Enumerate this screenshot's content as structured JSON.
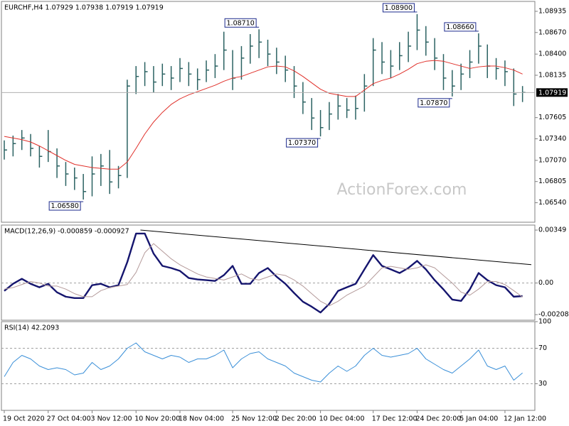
{
  "chart_data": [
    {
      "type": "ohlc",
      "title": "EURCHF,H4  1.07929 1.07938 1.07919 1.07919",
      "watermark": "ActionForex.com",
      "categories": [
        "19 Oct 2020",
        null,
        null,
        null,
        null,
        "27 Oct 04:00",
        null,
        null,
        null,
        null,
        "3 Nov 12:00",
        null,
        null,
        null,
        null,
        "10 Nov 20:00",
        null,
        null,
        null,
        null,
        "18 Nov 04:00",
        null,
        null,
        null,
        null,
        null,
        "25 Nov 12:00",
        null,
        null,
        null,
        null,
        "2 Dec 20:00",
        null,
        null,
        null,
        null,
        "10 Dec 04:00",
        null,
        null,
        null,
        null,
        null,
        "17 Dec 12:00",
        null,
        null,
        null,
        null,
        "24 Dec 20:00",
        null,
        null,
        null,
        null,
        "5 Jan 04:00",
        null,
        null,
        null,
        null,
        "12 Jan 12:00",
        null,
        null
      ],
      "high": [
        1.0732,
        1.0738,
        1.0745,
        1.074,
        1.0725,
        1.0745,
        1.0722,
        1.0705,
        1.0698,
        1.069,
        1.0712,
        1.0715,
        1.072,
        1.07,
        1.0808,
        1.0825,
        1.083,
        1.0825,
        1.0828,
        1.0825,
        1.0835,
        1.083,
        1.0822,
        1.0832,
        1.084,
        1.0868,
        1.0845,
        1.085,
        1.0865,
        1.0871,
        1.0858,
        1.0848,
        1.0838,
        1.0825,
        1.0805,
        1.0785,
        1.077,
        1.078,
        1.079,
        1.0785,
        1.0788,
        1.0815,
        1.086,
        1.0855,
        1.0845,
        1.0855,
        1.0868,
        1.089,
        1.0875,
        1.086,
        1.084,
        1.082,
        1.0828,
        1.0845,
        1.0866,
        1.0852,
        1.0835,
        1.0832,
        1.0822,
        1.08
      ],
      "low": [
        1.0708,
        1.0712,
        1.072,
        1.0712,
        1.0698,
        1.0705,
        1.0685,
        1.0675,
        1.067,
        1.0658,
        1.0662,
        1.0675,
        1.0665,
        1.0672,
        1.0685,
        1.079,
        1.08,
        1.0792,
        1.08,
        1.0795,
        1.0805,
        1.08,
        1.0795,
        1.0805,
        1.081,
        1.082,
        1.0795,
        1.0808,
        1.0828,
        1.0835,
        1.0825,
        1.0815,
        1.0805,
        1.0785,
        1.0765,
        1.0745,
        1.0737,
        1.0745,
        1.0758,
        1.076,
        1.0758,
        1.0768,
        1.08,
        1.0815,
        1.081,
        1.082,
        1.083,
        1.0845,
        1.0838,
        1.082,
        1.0795,
        1.0787,
        1.0795,
        1.081,
        1.0828,
        1.081,
        1.0808,
        1.08,
        1.0775,
        1.078
      ],
      "close": [
        1.072,
        1.0728,
        1.0735,
        1.0722,
        1.0712,
        1.0718,
        1.07,
        1.069,
        1.0685,
        1.0668,
        1.069,
        1.07,
        1.068,
        1.0688,
        1.08,
        1.0812,
        1.0818,
        1.0805,
        1.0815,
        1.081,
        1.0822,
        1.0815,
        1.0808,
        1.082,
        1.0825,
        1.0845,
        1.081,
        1.0835,
        1.085,
        1.0855,
        1.084,
        1.083,
        1.082,
        1.08,
        1.078,
        1.076,
        1.0748,
        1.0765,
        1.0775,
        1.077,
        1.0772,
        1.08,
        1.0845,
        1.083,
        1.0825,
        1.0838,
        1.085,
        1.087,
        1.0855,
        1.0835,
        1.081,
        1.08,
        1.0815,
        1.083,
        1.085,
        1.0825,
        1.0822,
        1.0818,
        1.079,
        1.0792
      ],
      "color": "#2b6262",
      "series": [
        {
          "color": "#e0302a",
          "values": [
            1.0737,
            1.0735,
            1.0733,
            1.073,
            1.0725,
            1.0719,
            1.0713,
            1.0707,
            1.0702,
            1.07,
            1.0698,
            1.0697,
            1.0696,
            1.0696,
            1.0705,
            1.0722,
            1.074,
            1.0755,
            1.0767,
            1.0777,
            1.0784,
            1.0789,
            1.0793,
            1.0797,
            1.0801,
            1.0806,
            1.081,
            1.0812,
            1.0816,
            1.082,
            1.0824,
            1.0825,
            1.0824,
            1.0819,
            1.0812,
            1.0804,
            1.0796,
            1.0791,
            1.0789,
            1.0787,
            1.0787,
            1.0795,
            1.0803,
            1.0807,
            1.081,
            1.0815,
            1.0821,
            1.0828,
            1.0831,
            1.0832,
            1.0831,
            1.0828,
            1.0825,
            1.0822,
            1.0824,
            1.0825,
            1.0825,
            1.0823,
            1.082,
            1.0815
          ]
        }
      ],
      "annotations": [
        {
          "value": 1.0658,
          "label": "1.06580"
        },
        {
          "value": 1.0871,
          "label": "1.08710"
        },
        {
          "value": 1.0737,
          "label": "1.07370"
        },
        {
          "value": 1.089,
          "label": "1.08900"
        },
        {
          "value": 1.0787,
          "label": "1.07870"
        },
        {
          "value": 1.0866,
          "label": "1.08660"
        }
      ],
      "current_price": 1.07919,
      "ylim": [
        1.06296,
        1.09059
      ],
      "yticks": [
        {
          "value": 1.08935,
          "label": "1.08935"
        },
        {
          "value": 1.0867,
          "label": "1.08670"
        },
        {
          "value": 1.084,
          "label": "1.08400"
        },
        {
          "value": 1.08135,
          "label": "1.08135"
        },
        {
          "value": 1.07605,
          "label": "1.07605"
        },
        {
          "value": 1.0734,
          "label": "1.07340"
        },
        {
          "value": 1.0707,
          "label": "1.07070"
        },
        {
          "value": 1.06805,
          "label": "1.06805"
        },
        {
          "value": 1.0654,
          "label": "1.06540"
        }
      ]
    },
    {
      "type": "line",
      "title": "MACD(12,26,9) -0.000859 -0.000927",
      "series": [
        {
          "color": "#15156e",
          "width": 2.4,
          "values": [
            -0.00052,
            -5e-05,
            0.00028,
            -5e-05,
            -0.00028,
            -5e-05,
            -0.00061,
            -0.0009,
            -0.00099,
            -0.00099,
            -0.00014,
            -5e-05,
            -0.00028,
            -0.00014,
            0.00137,
            0.00326,
            0.00326,
            0.00194,
            0.00113,
            0.00099,
            0.0008,
            0.00033,
            0.00024,
            0.00019,
            0.00014,
            0.00052,
            0.00113,
            -5e-05,
            -5e-05,
            0.00066,
            0.00099,
            0.00042,
            -5e-05,
            -0.00066,
            -0.00123,
            -0.00156,
            -0.00194,
            -0.00137,
            -0.00052,
            -0.00028,
            -5e-05,
            0.0009,
            0.00184,
            0.00113,
            0.0009,
            0.00066,
            0.00099,
            0.00146,
            0.0009,
            0.00019,
            -0.00042,
            -0.00109,
            -0.00118,
            -0.00042,
            0.00066,
            0.00019,
            -0.00014,
            -0.00028,
            -0.0009,
            -0.000859
          ]
        },
        {
          "color": "#b49a9a",
          "width": 1,
          "values": [
            -0.0004,
            -0.0003,
            -0.0001,
            0.0001,
            0.0,
            -0.0002,
            -0.0002,
            -0.0004,
            -0.0007,
            -0.0009,
            -0.0009,
            -0.0005,
            -0.0003,
            -0.0002,
            -0.0001,
            0.0007,
            0.002,
            0.0026,
            0.0021,
            0.0016,
            0.0012,
            0.0009,
            0.0006,
            0.0004,
            0.0003,
            0.0002,
            0.0004,
            0.0006,
            0.0003,
            0.0002,
            0.0004,
            0.0006,
            0.0005,
            0.0002,
            -0.0002,
            -0.0007,
            -0.0012,
            -0.0015,
            -0.0012,
            -0.0008,
            -0.0005,
            -0.0002,
            0.0004,
            0.001,
            0.0011,
            0.001,
            0.0009,
            0.001,
            0.0012,
            0.001,
            0.0005,
            0.0,
            -0.0006,
            -0.0008,
            -0.0004,
            0.0001,
            0.0001,
            -0.0001,
            -0.0005,
            -0.000927
          ]
        }
      ],
      "trendline": {
        "x": [
          15.5,
          60
        ],
        "y": [
          0.00349,
          0.00121
        ],
        "color": "#000000"
      },
      "levels": [
        0
      ],
      "ylim": [
        -0.00245,
        0.00382
      ],
      "yticks": [
        0.00349,
        {
          "value": 0,
          "label": "0.00"
        },
        -0.002083
      ]
    },
    {
      "type": "line",
      "title": "RSI(14) 42.2093",
      "series": [
        {
          "color": "#3a8fd8",
          "width": 1,
          "values": [
            38,
            54,
            62,
            58,
            50,
            46,
            48,
            46,
            40,
            42,
            54,
            46,
            50,
            58,
            70,
            76,
            66,
            62,
            58,
            62,
            60,
            54,
            58,
            58,
            62,
            68,
            48,
            58,
            64,
            66,
            58,
            54,
            50,
            42,
            38,
            34,
            32,
            42,
            50,
            44,
            50,
            62,
            70,
            62,
            60,
            62,
            64,
            70,
            58,
            52,
            46,
            42,
            50,
            58,
            68,
            50,
            46,
            50,
            34,
            42.2093
          ]
        }
      ],
      "levels": [
        70,
        30
      ],
      "ylim": [
        0,
        100
      ],
      "yticks": [
        100,
        70,
        30
      ]
    }
  ]
}
